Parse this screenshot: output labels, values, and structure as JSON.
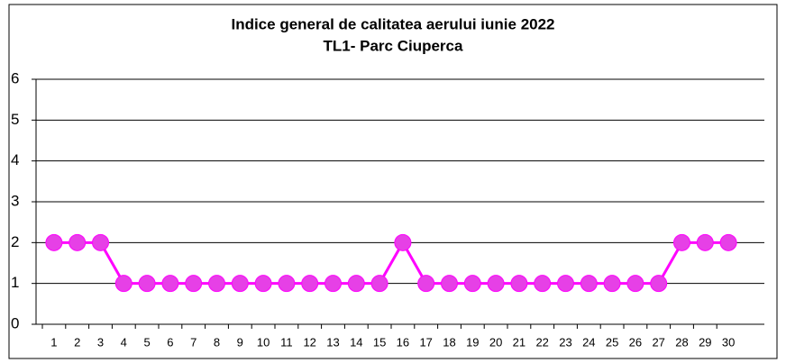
{
  "chart_data": {
    "type": "line",
    "title": "Indice general de calitatea aerului  iunie 2022",
    "subtitle": "TL1- Parc Ciuperca",
    "categories": [
      "1",
      "2",
      "3",
      "4",
      "5",
      "6",
      "7",
      "8",
      "9",
      "10",
      "11",
      "12",
      "13",
      "14",
      "15",
      "16",
      "17",
      "18",
      "19",
      "20",
      "21",
      "22",
      "23",
      "24",
      "25",
      "26",
      "27",
      "28",
      "29",
      "30"
    ],
    "series": [
      {
        "name": null,
        "color": "#ff00ff",
        "marker_color": "#e640e6",
        "values": [
          2,
          2,
          2,
          1,
          1,
          1,
          1,
          1,
          1,
          1,
          1,
          1,
          1,
          1,
          1,
          2,
          1,
          1,
          1,
          1,
          1,
          1,
          1,
          1,
          1,
          1,
          1,
          2,
          2,
          2
        ]
      }
    ],
    "ylim": [
      0,
      6
    ],
    "yticks": [
      0,
      1,
      2,
      3,
      4,
      5,
      6
    ],
    "grid": true
  }
}
